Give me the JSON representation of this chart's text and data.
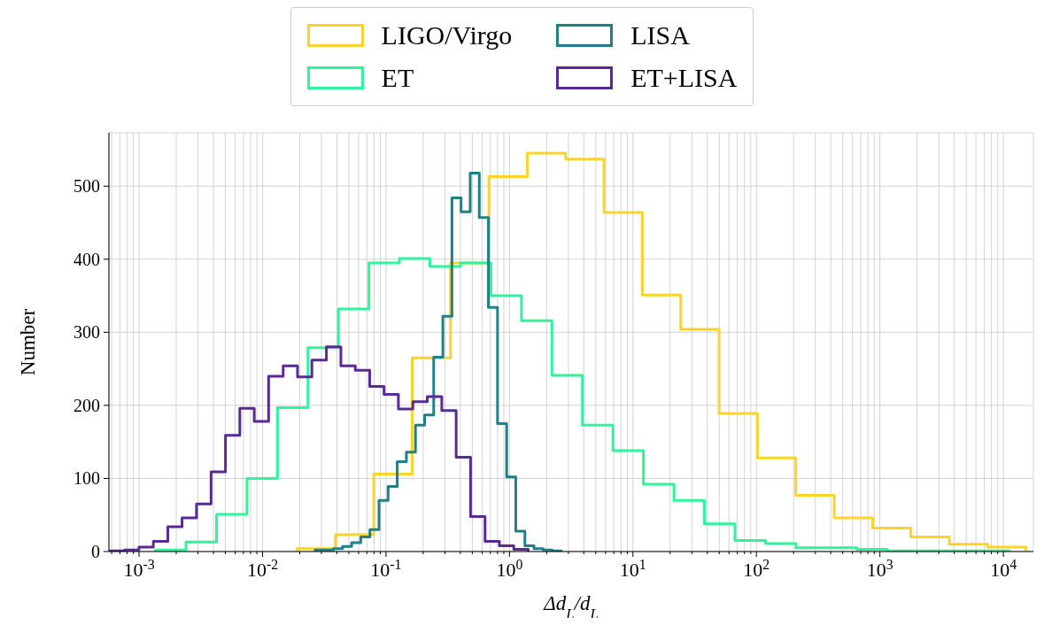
{
  "chart_data": {
    "type": "step",
    "xlabel": "Δd$_{L}$/d$_{L}$",
    "ylabel": "Number",
    "log": "x",
    "grid": true,
    "legend": "top",
    "xlim": [
      0.00057,
      17500
    ],
    "ylim": [
      0,
      573
    ],
    "yticks": [
      0,
      100,
      200,
      300,
      400,
      500
    ],
    "xticks": [
      {
        "value": 0.0006,
        "label": null
      },
      {
        "value": 0.0007,
        "label": null
      },
      {
        "value": 0.0008,
        "label": null
      },
      {
        "value": 0.0009,
        "label": null
      },
      {
        "value": 0.001,
        "label": "10$^{-3}$"
      },
      {
        "value": 0.002,
        "label": null
      },
      {
        "value": 0.003,
        "label": null
      },
      {
        "value": 0.004,
        "label": null
      },
      {
        "value": 0.005,
        "label": null
      },
      {
        "value": 0.006,
        "label": null
      },
      {
        "value": 0.007,
        "label": null
      },
      {
        "value": 0.008,
        "label": null
      },
      {
        "value": 0.009,
        "label": null
      },
      {
        "value": 0.01,
        "label": "10$^{-2}$"
      },
      {
        "value": 0.02,
        "label": null
      },
      {
        "value": 0.03,
        "label": null
      },
      {
        "value": 0.04,
        "label": null
      },
      {
        "value": 0.05,
        "label": null
      },
      {
        "value": 0.06,
        "label": null
      },
      {
        "value": 0.07,
        "label": null
      },
      {
        "value": 0.08,
        "label": null
      },
      {
        "value": 0.09,
        "label": null
      },
      {
        "value": 0.1,
        "label": "10$^{-1}$"
      },
      {
        "value": 0.2,
        "label": null
      },
      {
        "value": 0.3,
        "label": null
      },
      {
        "value": 0.4,
        "label": null
      },
      {
        "value": 0.5,
        "label": null
      },
      {
        "value": 0.6,
        "label": null
      },
      {
        "value": 0.7,
        "label": null
      },
      {
        "value": 0.8,
        "label": null
      },
      {
        "value": 0.9,
        "label": null
      },
      {
        "value": 1,
        "label": "10$^{0}$"
      },
      {
        "value": 2,
        "label": null
      },
      {
        "value": 3,
        "label": null
      },
      {
        "value": 4,
        "label": null
      },
      {
        "value": 5,
        "label": null
      },
      {
        "value": 6,
        "label": null
      },
      {
        "value": 7,
        "label": null
      },
      {
        "value": 8,
        "label": null
      },
      {
        "value": 9,
        "label": null
      },
      {
        "value": 10,
        "label": "10$^{1}$"
      },
      {
        "value": 20,
        "label": null
      },
      {
        "value": 30,
        "label": null
      },
      {
        "value": 40,
        "label": null
      },
      {
        "value": 50,
        "label": null
      },
      {
        "value": 60,
        "label": null
      },
      {
        "value": 70,
        "label": null
      },
      {
        "value": 80,
        "label": null
      },
      {
        "value": 90,
        "label": null
      },
      {
        "value": 100,
        "label": "10$^{2}$"
      },
      {
        "value": 200,
        "label": null
      },
      {
        "value": 300,
        "label": null
      },
      {
        "value": 400,
        "label": null
      },
      {
        "value": 500,
        "label": null
      },
      {
        "value": 600,
        "label": null
      },
      {
        "value": 700,
        "label": null
      },
      {
        "value": 800,
        "label": null
      },
      {
        "value": 900,
        "label": null
      },
      {
        "value": 1000,
        "label": "10$^{3}$"
      },
      {
        "value": 2000,
        "label": null
      },
      {
        "value": 3000,
        "label": null
      },
      {
        "value": 4000,
        "label": null
      },
      {
        "value": 5000,
        "label": null
      },
      {
        "value": 6000,
        "label": null
      },
      {
        "value": 7000,
        "label": null
      },
      {
        "value": 8000,
        "label": null
      },
      {
        "value": 9000,
        "label": null
      },
      {
        "value": 10000,
        "label": "10$^{4}$"
      }
    ],
    "series": [
      {
        "name": "LIGO/Virgo",
        "color": "#fcd32a",
        "x": [
          0.01905,
          0.039,
          0.0797,
          0.163,
          0.333,
          0.681,
          1.393,
          2.85,
          5.83,
          11.91,
          24.4,
          49.9,
          101.9,
          208.4,
          426.6,
          872.9,
          1782,
          3648,
          7464,
          15240
        ],
        "values": [
          4,
          23,
          106,
          265,
          395,
          513,
          545,
          537,
          464,
          351,
          304,
          189,
          128,
          77,
          46,
          32,
          20,
          10,
          6,
          0
        ]
      },
      {
        "name": "ET",
        "color": "#2ef59b",
        "x": [
          0.001358,
          0.0024,
          0.00424,
          0.00748,
          0.01321,
          0.02333,
          0.0412,
          0.0728,
          0.1285,
          0.227,
          0.401,
          0.708,
          1.25,
          2.208,
          3.9,
          6.89,
          12.16,
          21.5,
          37.9,
          67,
          118.3,
          208.9,
          369,
          652,
          1151,
          2032,
          3589,
          6339,
          11194
        ],
        "values": [
          2,
          13,
          51,
          100,
          197,
          279,
          332,
          395,
          401,
          390,
          395,
          350,
          316,
          241,
          173,
          138,
          92,
          70,
          38,
          15,
          11,
          5,
          5,
          3,
          1,
          1,
          1,
          1,
          0
        ]
      },
      {
        "name": "LISA",
        "color": "#1f8088",
        "x": [
          0.0267,
          0.03165,
          0.03751,
          0.04446,
          0.0527,
          0.06247,
          0.07405,
          0.08778,
          0.104,
          0.1233,
          0.1462,
          0.1732,
          0.2054,
          0.2434,
          0.2886,
          0.342,
          0.4054,
          0.4806,
          0.5697,
          0.6753,
          0.8003,
          0.9487,
          1.1245,
          1.333,
          1.58,
          1.873,
          2.22,
          2.632
        ],
        "values": [
          2,
          2,
          4,
          7,
          12,
          20,
          30,
          70,
          89,
          123,
          136,
          173,
          187,
          266,
          322,
          484,
          465,
          518,
          457,
          334,
          175,
          102,
          28,
          8,
          4,
          2,
          1,
          0
        ]
      },
      {
        "name": "ET+LISA",
        "color": "#5a2a94",
        "x": [
          0.000582,
          0.000762,
          0.000997,
          0.001305,
          0.00171,
          0.00223,
          0.00292,
          0.00383,
          0.00501,
          0.00655,
          0.00857,
          0.0112,
          0.0147,
          0.0192,
          0.0251,
          0.0329,
          0.0431,
          0.0564,
          0.0738,
          0.0964,
          0.126,
          0.165,
          0.216,
          0.283,
          0.37,
          0.484,
          0.634,
          0.829,
          1.084,
          1.419
        ],
        "values": [
          1,
          2,
          6,
          14,
          34,
          46,
          65,
          109,
          159,
          196,
          178,
          240,
          254,
          239,
          262,
          280,
          254,
          248,
          226,
          215,
          195,
          205,
          212,
          193,
          129,
          48,
          14,
          8,
          3,
          0
        ]
      }
    ]
  }
}
